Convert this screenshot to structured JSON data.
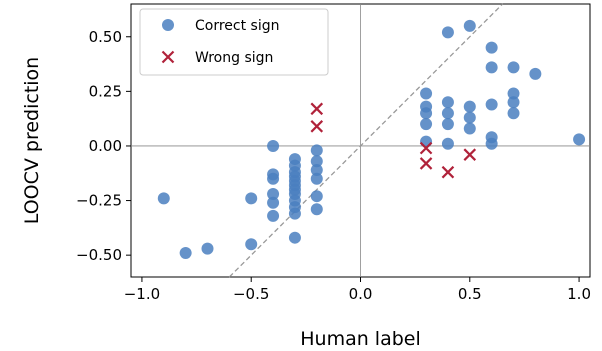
{
  "chart_data": {
    "type": "scatter",
    "xlabel": "Human label",
    "ylabel": "LOOCV prediction",
    "xlim": [
      -1.05,
      1.05
    ],
    "ylim": [
      -0.6,
      0.65
    ],
    "xticks": [
      -1.0,
      -0.5,
      0.0,
      0.5,
      1.0
    ],
    "xtick_labels": [
      "−1.0",
      "−0.5",
      "0.0",
      "0.5",
      "1.0"
    ],
    "yticks": [
      -0.5,
      -0.25,
      0.0,
      0.25,
      0.5
    ],
    "ytick_labels": [
      "−0.50",
      "−0.25",
      "0.00",
      "0.25",
      "0.50"
    ],
    "reference_lines": [
      "x = 0",
      "y = 0",
      "y = x (dashed)"
    ],
    "legend_position": "top-left",
    "series": [
      {
        "name": "Correct sign",
        "marker": "circle",
        "color": "#4a7fbf",
        "points": [
          [
            -0.9,
            -0.24
          ],
          [
            -0.8,
            -0.49
          ],
          [
            -0.7,
            -0.47
          ],
          [
            -0.5,
            -0.24
          ],
          [
            -0.5,
            -0.45
          ],
          [
            -0.4,
            0.0
          ],
          [
            -0.4,
            -0.13
          ],
          [
            -0.4,
            -0.15
          ],
          [
            -0.4,
            -0.22
          ],
          [
            -0.4,
            -0.26
          ],
          [
            -0.4,
            -0.32
          ],
          [
            -0.3,
            -0.06
          ],
          [
            -0.3,
            -0.09
          ],
          [
            -0.3,
            -0.12
          ],
          [
            -0.3,
            -0.14
          ],
          [
            -0.3,
            -0.16
          ],
          [
            -0.3,
            -0.18
          ],
          [
            -0.3,
            -0.2
          ],
          [
            -0.3,
            -0.22
          ],
          [
            -0.3,
            -0.25
          ],
          [
            -0.3,
            -0.28
          ],
          [
            -0.3,
            -0.31
          ],
          [
            -0.3,
            -0.42
          ],
          [
            -0.2,
            -0.02
          ],
          [
            -0.2,
            -0.07
          ],
          [
            -0.2,
            -0.11
          ],
          [
            -0.2,
            -0.15
          ],
          [
            -0.2,
            -0.23
          ],
          [
            -0.2,
            -0.29
          ],
          [
            0.3,
            0.24
          ],
          [
            0.3,
            0.18
          ],
          [
            0.3,
            0.15
          ],
          [
            0.3,
            0.1
          ],
          [
            0.3,
            0.02
          ],
          [
            0.4,
            0.52
          ],
          [
            0.4,
            0.2
          ],
          [
            0.4,
            0.15
          ],
          [
            0.4,
            0.1
          ],
          [
            0.4,
            0.01
          ],
          [
            0.5,
            0.55
          ],
          [
            0.5,
            0.18
          ],
          [
            0.5,
            0.13
          ],
          [
            0.5,
            0.08
          ],
          [
            0.6,
            0.45
          ],
          [
            0.6,
            0.36
          ],
          [
            0.6,
            0.19
          ],
          [
            0.6,
            0.04
          ],
          [
            0.6,
            0.01
          ],
          [
            0.7,
            0.36
          ],
          [
            0.7,
            0.24
          ],
          [
            0.7,
            0.2
          ],
          [
            0.7,
            0.15
          ],
          [
            0.8,
            0.33
          ],
          [
            1.0,
            0.03
          ]
        ]
      },
      {
        "name": "Wrong sign",
        "marker": "x",
        "color": "#b0223a",
        "points": [
          [
            -0.2,
            0.17
          ],
          [
            -0.2,
            0.09
          ],
          [
            0.3,
            -0.01
          ],
          [
            0.3,
            -0.08
          ],
          [
            0.4,
            -0.12
          ],
          [
            0.5,
            -0.04
          ]
        ]
      }
    ]
  }
}
